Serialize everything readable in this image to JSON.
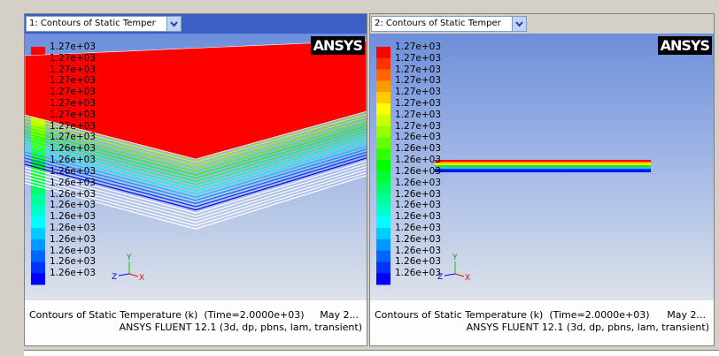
{
  "panels": [
    {
      "dropdown": "1: Contours of Static Temper",
      "logo": "ANSYS",
      "colorbar_labels": [
        "1.27e+03",
        "1.27e+03",
        "1.27e+03",
        "1.27e+03",
        "1.27e+03",
        "1.27e+03",
        "1.27e+03",
        "1.27e+03",
        "1.27e+03",
        "1.26e+03",
        "1.26e+03",
        "1.26e+03",
        "1.26e+03",
        "1.26e+03",
        "1.26e+03",
        "1.26e+03",
        "1.26e+03",
        "1.26e+03",
        "1.26e+03",
        "1.26e+03",
        "1.26e+03"
      ],
      "axes": {
        "y": "Y",
        "z": "Z",
        "x": "X"
      },
      "footer": {
        "title": "Contours of Static Temperature (k)  (Time=2.0000e+03)",
        "date": "May 2...",
        "version": "ANSYS FLUENT 12.1 (3d, dp, pbns, lam, transient)"
      }
    },
    {
      "dropdown": "2: Contours of Static Temper",
      "logo": "ANSYS",
      "colorbar_labels": [
        "1.27e+03",
        "1.27e+03",
        "1.27e+03",
        "1.27e+03",
        "1.27e+03",
        "1.27e+03",
        "1.27e+03",
        "1.27e+03",
        "1.26e+03",
        "1.26e+03",
        "1.26e+03",
        "1.26e+03",
        "1.26e+03",
        "1.26e+03",
        "1.26e+03",
        "1.26e+03",
        "1.26e+03",
        "1.26e+03",
        "1.26e+03",
        "1.26e+03",
        "1.26e+03"
      ],
      "axes": {
        "y": "Y",
        "z": "Z",
        "x": "X"
      },
      "footer": {
        "title": "Contours of Static Temperature (k)  (Time=2.0000e+03)",
        "date": "May 2...",
        "version": "ANSYS FLUENT 12.1 (3d, dp, pbns, lam, transient)"
      }
    }
  ]
}
